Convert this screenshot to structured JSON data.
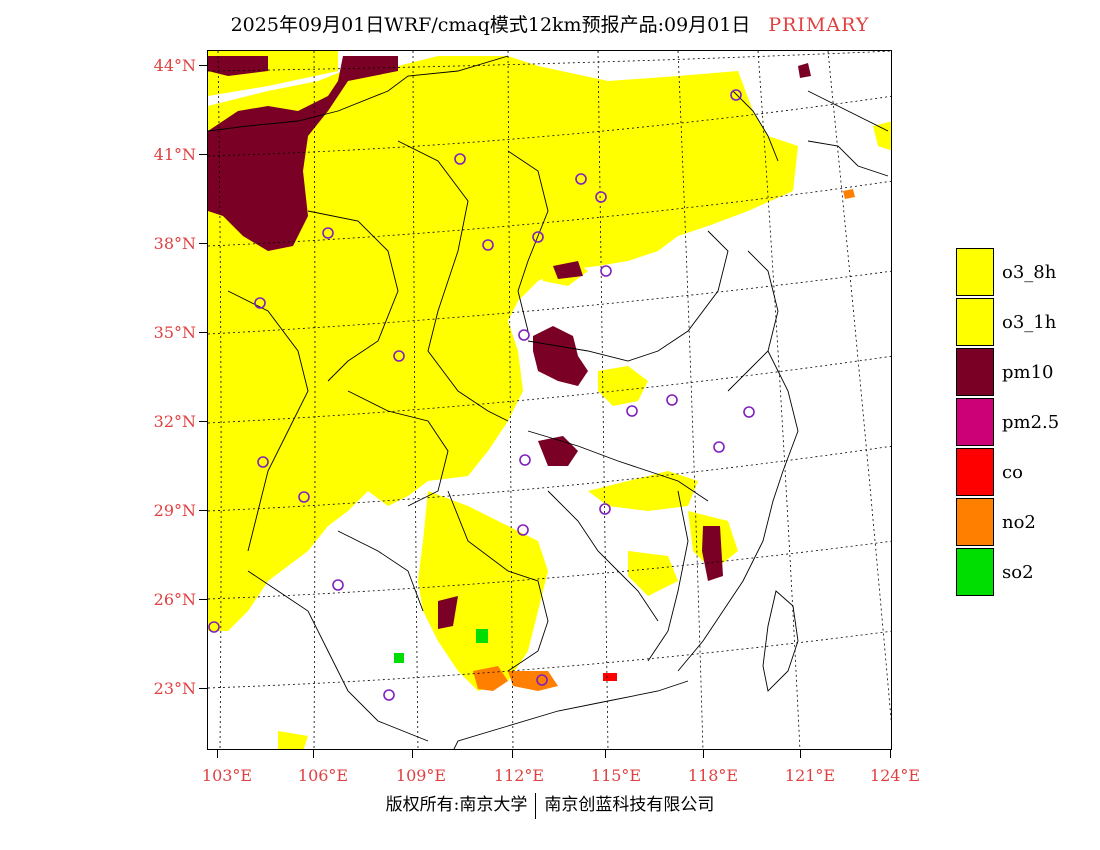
{
  "title": {
    "main": "2025年09月01日WRF/cmaq模式12km预报产品:09月01日",
    "tag": "PRIMARY",
    "tag_color": "#e04040"
  },
  "axes": {
    "lat_labels": [
      "44°N",
      "41°N",
      "38°N",
      "35°N",
      "32°N",
      "29°N",
      "26°N",
      "23°N"
    ],
    "lon_labels": [
      "103°E",
      "106°E",
      "109°E",
      "112°E",
      "115°E",
      "118°E",
      "121°E",
      "124°E"
    ],
    "label_color": "#e04040"
  },
  "legend": {
    "items": [
      {
        "label": "o3_8h",
        "color": "#ffff00"
      },
      {
        "label": "o3_1h",
        "color": "#ffff00"
      },
      {
        "label": "pm10",
        "color": "#7a0026"
      },
      {
        "label": "pm2.5",
        "color": "#cc0077"
      },
      {
        "label": "co",
        "color": "#ff0000"
      },
      {
        "label": "no2",
        "color": "#ff7f00"
      },
      {
        "label": "so2",
        "color": "#00dd00"
      }
    ]
  },
  "footer": {
    "left": "版权所有:南京大学",
    "right": "南京创蓝科技有限公司"
  }
}
